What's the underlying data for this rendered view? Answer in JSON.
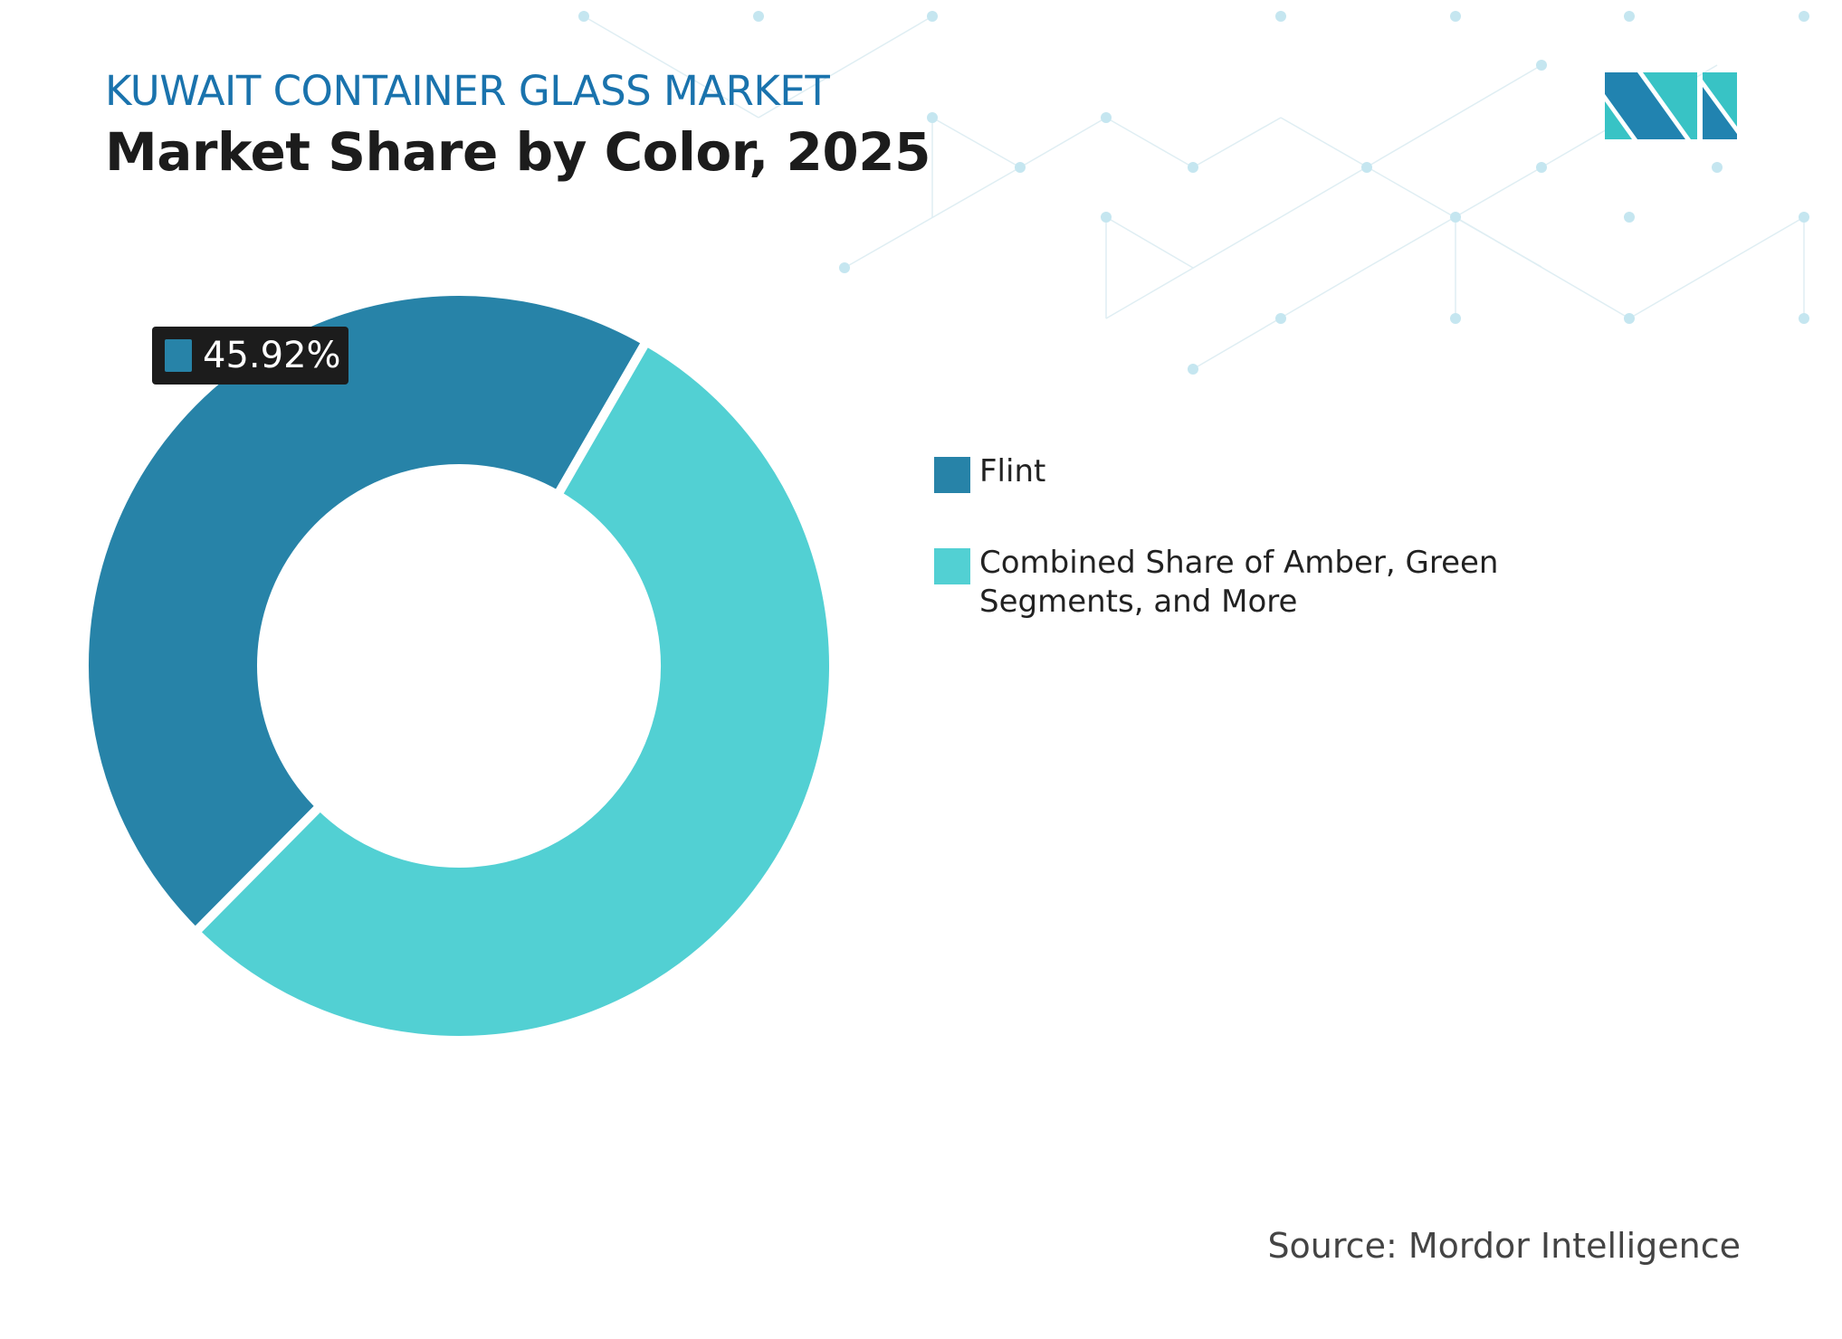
{
  "header": {
    "subtitle": "KUWAIT CONTAINER GLASS MARKET",
    "title": "Market Share by Color, 2025"
  },
  "logo": {
    "name": "mordor-intelligence-logo",
    "colors": [
      "#2183b0",
      "#38c3c5"
    ]
  },
  "chart_data": {
    "type": "pie",
    "style": "donut",
    "categories": [
      "Flint",
      "Combined Share of Amber, Green Segments, and More"
    ],
    "values": [
      45.92,
      54.08
    ],
    "colors": [
      "#2783a8",
      "#52d0d3"
    ],
    "data_labels": [
      "45.92%"
    ],
    "legend_placement": "right"
  },
  "source": "Source: Mordor Intelligence"
}
